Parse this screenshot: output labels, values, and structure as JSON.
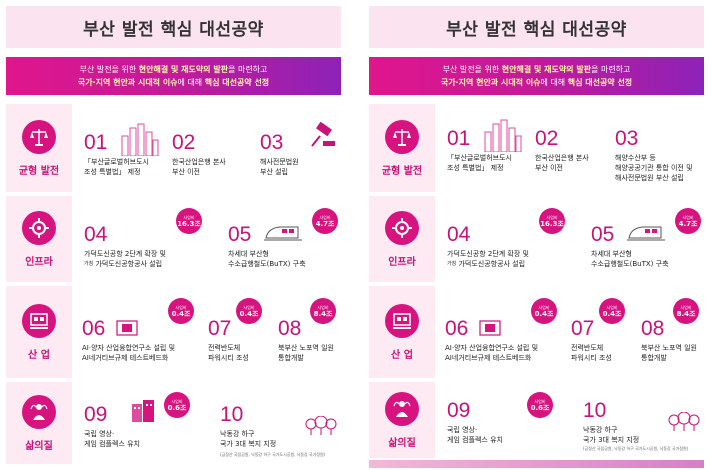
{
  "title": "부산 발전 핵심 대선공약",
  "intro": {
    "line1_a": "부산 발전을 위한 ",
    "line1_b": "현안해결 및 재도약의 발판",
    "line1_c": "을 마련하고",
    "line2_a": "국가·지역 현안과 시대적 이슈",
    "line2_b": "에 대해 ",
    "line2_c": "핵심 대선공약 선정"
  },
  "sections": {
    "balance": {
      "label": "균형 발전"
    },
    "infra": {
      "label": "인프라"
    },
    "industry": {
      "label": "산 업"
    },
    "life": {
      "label": "삶의질"
    }
  },
  "left": {
    "items": {
      "i01": {
        "num": "01",
        "l1": "「부산글로벌허브도시",
        "l2": "조성 특별법」 제정"
      },
      "i02": {
        "num": "02",
        "l1": "한국산업은행 본사",
        "l2": "부산 이전"
      },
      "i03": {
        "num": "03",
        "l1": "해사전문법원",
        "l2": "부산 설립"
      },
      "i04": {
        "num": "04",
        "l1": "가덕도신공항 2단계 확장 및",
        "tag": "가칭",
        "l2": "가덕도신공항공사 설립",
        "b_top": "사업비",
        "b_val": "16.3조"
      },
      "i05": {
        "num": "05",
        "l1": "차세대 부산형",
        "l2": "수소급행철도(BuTX) 구축",
        "b_top": "사업비",
        "b_val": "4.7조"
      },
      "i06": {
        "num": "06",
        "l1": "AI·양자 산업융합연구소 설립 및",
        "l2": "AI네거티브규제 테스트베드화",
        "b_top": "사업비",
        "b_val": "0.4조"
      },
      "i07": {
        "num": "07",
        "l1": "전력반도체",
        "l2": "파워시티 조성",
        "b_top": "사업비",
        "b_val": "0.4조"
      },
      "i08": {
        "num": "08",
        "l1": "북부산 노포역 일원",
        "l2": "통합개발",
        "b_top": "사업비",
        "b_val": "8.4조"
      },
      "i09": {
        "num": "09",
        "l1": "국립 영상·",
        "l2": "게임 컴플렉스 유치",
        "b_top": "사업비",
        "b_val": "0.6조"
      },
      "i10": {
        "num": "10",
        "l1": "낙동강 하구",
        "l2": "국가 3대 복지 지정",
        "note": "(금정산 국립공원, 낙동강 하구 국가도시공원, 낙동강 국가정원)"
      }
    }
  },
  "right": {
    "items": {
      "i01": {
        "num": "01",
        "l1": "「부산글로벌허브도시",
        "l2": "조성 특별법」 제정"
      },
      "i02": {
        "num": "02",
        "l1": "한국산업은행 본사",
        "l2": "부산 이전"
      },
      "i03": {
        "num": "03",
        "l1": "해양수산부 등",
        "l2": "해양공공기관 통합 이전 및",
        "l3": "해사전문법원 부산 설립"
      },
      "i04": {
        "num": "04",
        "l1": "가덕도신공항 2단계 확장 및",
        "tag": "가칭",
        "l2": "가덕도신공항공사 설립",
        "b_top": "사업비",
        "b_val": "16.3조"
      },
      "i05": {
        "num": "05",
        "l1": "차세대 부산형",
        "l2": "수소급행철도(BuTX) 구축",
        "b_top": "사업비",
        "b_val": "4.7조"
      },
      "i06": {
        "num": "06",
        "l1": "AI·양자 산업융합연구소 설립 및",
        "l2": "AI네거티브규제 테스트베드화",
        "b_top": "사업비",
        "b_val": "0.4조"
      },
      "i07": {
        "num": "07",
        "l1": "전력반도체",
        "l2": "파워시티 조성",
        "b_top": "사업비",
        "b_val": "0.4조"
      },
      "i08": {
        "num": "08",
        "l1": "북부산 노포역 일원",
        "l2": "통합개발",
        "b_top": "사업비",
        "b_val": "8.4조"
      },
      "i09": {
        "num": "09",
        "l1": "국립 영상·",
        "l2": "게임 컴플렉스 유치",
        "b_top": "사업비",
        "b_val": "0.6조"
      },
      "i10": {
        "num": "10",
        "l1": "낙동강 하구",
        "l2": "국가 3대 복지 지정",
        "note": "(금정산 국립공원, 낙동강 하구 국가도시공원, 낙동강 국가정원)"
      }
    }
  },
  "colors": {
    "accent": "#d6137f",
    "soft": "#fdeaf3",
    "title_bg": "#fbe3ef"
  },
  "icons": {
    "balance": "scale-icon",
    "infra": "gear-icon",
    "industry": "factory-icon",
    "life": "person-icon",
    "i01": "city-skyline-icon",
    "i03": "gavel-icon",
    "i05": "train-icon",
    "i06": "chip-icon",
    "i09": "building-icon",
    "i10": "trees-icon"
  }
}
